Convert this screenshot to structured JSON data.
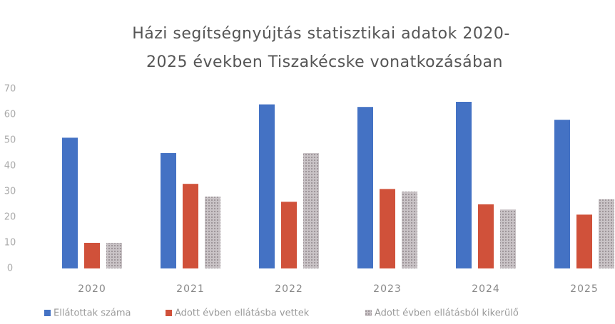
{
  "chart_data": {
    "type": "bar",
    "title": [
      "Házi segítségnyújtás statisztikai adatok 2020-",
      "2025 években Tiszakécske vonatkozásában"
    ],
    "categories": [
      "2020",
      "2021",
      "2022",
      "2023",
      "2024",
      "2025"
    ],
    "series": [
      {
        "name": "Ellátottak száma",
        "color": "#4472c4",
        "values": [
          51,
          45,
          64,
          63,
          65,
          58
        ]
      },
      {
        "name": "Adott évben ellátásba vettek",
        "color": "#d0513a",
        "values": [
          10,
          33,
          26,
          31,
          25,
          21
        ]
      },
      {
        "name": "Adott évben ellátásból kikerülő",
        "color": "#b8b0b4",
        "values": [
          10,
          28,
          45,
          30,
          23,
          27
        ]
      }
    ],
    "ylim": [
      0,
      70
    ],
    "yticks": [
      0,
      10,
      20,
      30,
      40,
      50,
      60,
      70
    ],
    "grid": false,
    "legend": "bottom"
  }
}
